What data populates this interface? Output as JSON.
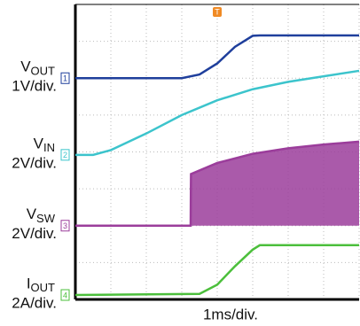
{
  "chart_data": {
    "type": "scope",
    "x_label": "1ms/div.",
    "trigger_label": "T",
    "xlim": [
      0,
      8
    ],
    "ylim": [
      0,
      8
    ],
    "xticks": [
      0,
      1,
      2,
      3,
      4,
      5,
      6,
      7,
      8
    ],
    "yticks": [
      0,
      1,
      2,
      3,
      4,
      5,
      6,
      7,
      8
    ],
    "grid": true,
    "series": [
      {
        "name": "V",
        "subscript": "OUT",
        "scale": "1V/div.",
        "marker": "1",
        "color": "#1f3f9c",
        "x": [
          0,
          3,
          3.5,
          4,
          4.5,
          5,
          5.2,
          8
        ],
        "values": [
          6.0,
          6.0,
          6.1,
          6.4,
          6.85,
          7.15,
          7.16,
          7.16
        ]
      },
      {
        "name": "V",
        "subscript": "IN",
        "scale": "2V/div.",
        "marker": "2",
        "color": "#3cc4cc",
        "x": [
          0,
          0.5,
          1,
          2,
          3,
          4,
          5,
          6,
          7,
          8
        ],
        "values": [
          3.92,
          3.92,
          4.05,
          4.5,
          5.0,
          5.4,
          5.7,
          5.9,
          6.05,
          6.2
        ]
      },
      {
        "name": "V",
        "subscript": "SW",
        "scale": "2V/div.",
        "marker": "3",
        "color": "#9b3d9b",
        "fill": true,
        "x": [
          0,
          3.25,
          3.26,
          4,
          5,
          6,
          7,
          8
        ],
        "values": [
          2.0,
          2.0,
          3.4,
          3.7,
          3.95,
          4.1,
          4.2,
          4.28
        ]
      },
      {
        "name": "I",
        "subscript": "OUT",
        "scale": "2A/div.",
        "marker": "4",
        "color": "#4cbf3c",
        "x": [
          0,
          3.5,
          4,
          4.5,
          5,
          5.2,
          8
        ],
        "values": [
          0.12,
          0.15,
          0.4,
          0.9,
          1.35,
          1.47,
          1.47
        ]
      }
    ]
  }
}
